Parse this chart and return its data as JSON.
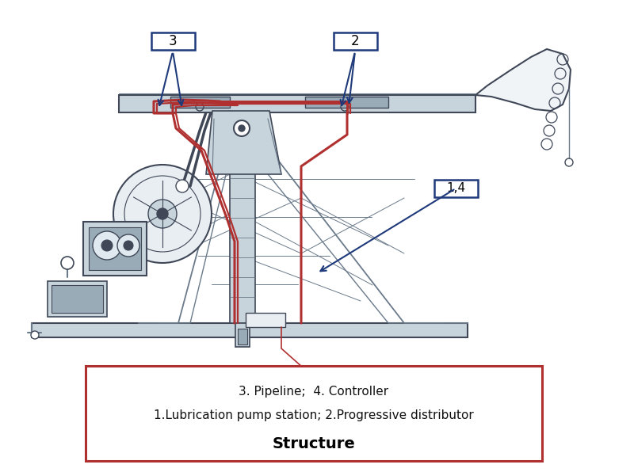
{
  "title": "Structure",
  "legend_line1": "1.Lubrication pump station; 2.Progressive distributor",
  "legend_line2": "3. Pipeline;  4. Controller",
  "bg_color": "#ffffff",
  "label_box_color": "#1f3a7a",
  "legend_border_color": "#b03030",
  "drawing_color": "#6a7a8a",
  "drawing_color_dark": "#404858",
  "red_pipe_color": "#b03030",
  "blue_label_color": "#1f3a7a",
  "figsize": [
    8.0,
    5.96
  ],
  "dpi": 100
}
